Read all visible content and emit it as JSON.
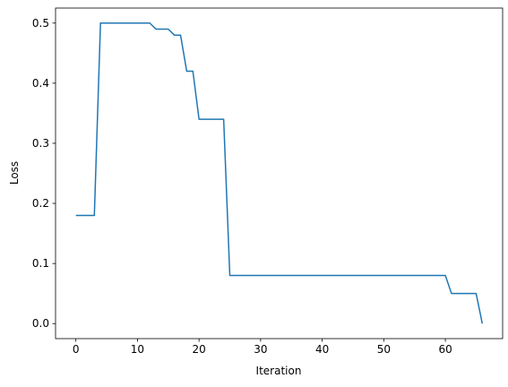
{
  "chart_data": {
    "type": "line",
    "x_label": "Iteration",
    "y_label": "Loss",
    "x": [
      0,
      1,
      2,
      3,
      4,
      5,
      6,
      7,
      8,
      9,
      10,
      11,
      12,
      13,
      14,
      15,
      16,
      17,
      18,
      19,
      20,
      21,
      22,
      23,
      24,
      25,
      26,
      27,
      28,
      29,
      30,
      31,
      32,
      33,
      34,
      35,
      36,
      37,
      38,
      39,
      40,
      41,
      42,
      43,
      44,
      45,
      46,
      47,
      48,
      49,
      50,
      51,
      52,
      53,
      54,
      55,
      56,
      57,
      58,
      59,
      60,
      61,
      62,
      63,
      64,
      65,
      66
    ],
    "values": [
      0.18,
      0.18,
      0.18,
      0.18,
      0.5,
      0.5,
      0.5,
      0.5,
      0.5,
      0.5,
      0.5,
      0.5,
      0.5,
      0.49,
      0.49,
      0.49,
      0.48,
      0.48,
      0.42,
      0.42,
      0.34,
      0.34,
      0.34,
      0.34,
      0.34,
      0.08,
      0.08,
      0.08,
      0.08,
      0.08,
      0.08,
      0.08,
      0.08,
      0.08,
      0.08,
      0.08,
      0.08,
      0.08,
      0.08,
      0.08,
      0.08,
      0.08,
      0.08,
      0.08,
      0.08,
      0.08,
      0.08,
      0.08,
      0.08,
      0.08,
      0.08,
      0.08,
      0.08,
      0.08,
      0.08,
      0.08,
      0.08,
      0.08,
      0.08,
      0.08,
      0.08,
      0.05,
      0.05,
      0.05,
      0.05,
      0.05,
      0.0
    ],
    "color": "#1f77b4",
    "xlim": [
      -3.3,
      69.3
    ],
    "xticks": [
      0,
      10,
      20,
      30,
      40,
      50,
      60
    ],
    "ylim": [
      -0.025,
      0.525
    ],
    "yticks": [
      {
        "value": 0,
        "label": "0.0"
      },
      0.1,
      0.2,
      0.3,
      0.4,
      0.5
    ],
    "grid": false
  }
}
